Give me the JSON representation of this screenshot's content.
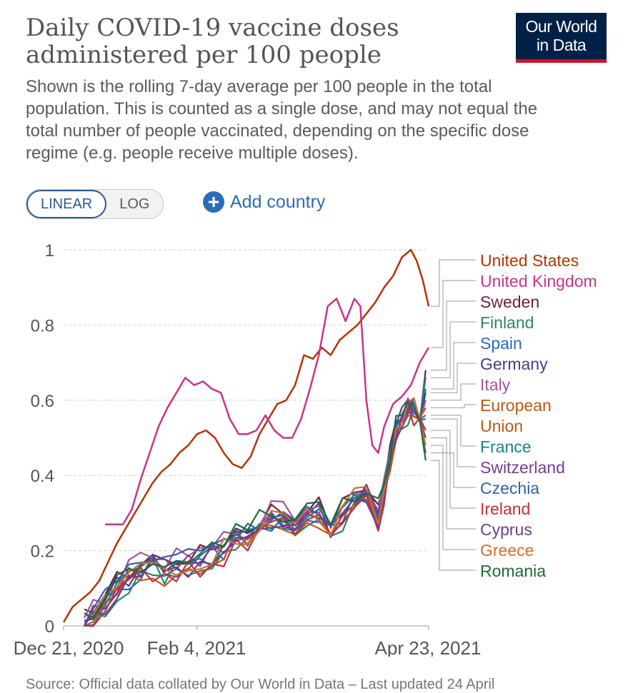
{
  "header": {
    "title": "Daily COVID-19 vaccine doses administered per 100 people",
    "subtitle": "Shown is the rolling 7-day average per 100 people in the total population. This is counted as a single dose, and may not equal the total number of people vaccinated, depending on the specific dose regime (e.g. people receive multiple doses).",
    "logo_line1": "Our World",
    "logo_line2": "in Data"
  },
  "controls": {
    "linear_label": "LINEAR",
    "log_label": "LOG",
    "add_country_label": "Add country"
  },
  "footer": {
    "source_text": "Source: Official data collated by Our World in Data – Last updated 24 April"
  },
  "colors": {
    "brand_navy": "#002147",
    "brand_red": "#c5162e",
    "accent_blue": "#2b6cb8"
  },
  "chart_data": {
    "type": "line",
    "title": "Daily COVID-19 vaccine doses administered per 100 people",
    "xlabel": "",
    "ylabel": "",
    "ylim": [
      0,
      1
    ],
    "x_ticks": [
      "Dec 21, 2020",
      "Feb 4, 2021",
      "Apr 23, 2021"
    ],
    "y_ticks": [
      0,
      0.2,
      0.4,
      0.6,
      0.8,
      1
    ],
    "y_tick_labels": [
      "0",
      "0.2",
      "0.4",
      "0.6",
      "0.8",
      "1"
    ],
    "x_day_range": [
      0,
      123
    ],
    "grid": true,
    "legend_position": "right",
    "series": [
      {
        "name": "United States",
        "color": "#b13507",
        "end": 0.85,
        "points": [
          [
            0,
            0.01
          ],
          [
            3,
            0.05
          ],
          [
            6,
            0.07
          ],
          [
            9,
            0.09
          ],
          [
            12,
            0.12
          ],
          [
            15,
            0.17
          ],
          [
            18,
            0.22
          ],
          [
            21,
            0.26
          ],
          [
            24,
            0.3
          ],
          [
            27,
            0.34
          ],
          [
            30,
            0.38
          ],
          [
            33,
            0.41
          ],
          [
            36,
            0.43
          ],
          [
            39,
            0.46
          ],
          [
            42,
            0.48
          ],
          [
            45,
            0.51
          ],
          [
            48,
            0.52
          ],
          [
            51,
            0.5
          ],
          [
            54,
            0.46
          ],
          [
            57,
            0.43
          ],
          [
            60,
            0.42
          ],
          [
            63,
            0.45
          ],
          [
            66,
            0.51
          ],
          [
            69,
            0.55
          ],
          [
            72,
            0.59
          ],
          [
            75,
            0.6
          ],
          [
            78,
            0.64
          ],
          [
            81,
            0.72
          ],
          [
            84,
            0.71
          ],
          [
            87,
            0.74
          ],
          [
            90,
            0.72
          ],
          [
            93,
            0.76
          ],
          [
            96,
            0.78
          ],
          [
            99,
            0.8
          ],
          [
            102,
            0.83
          ],
          [
            105,
            0.86
          ],
          [
            108,
            0.9
          ],
          [
            111,
            0.93
          ],
          [
            114,
            0.98
          ],
          [
            117,
            1.0
          ],
          [
            119,
            0.97
          ],
          [
            121,
            0.92
          ],
          [
            123,
            0.85
          ]
        ]
      },
      {
        "name": "United Kingdom",
        "color": "#c9338d",
        "end": 0.74,
        "points": [
          [
            14,
            0.27
          ],
          [
            20,
            0.27
          ],
          [
            23,
            0.31
          ],
          [
            26,
            0.39
          ],
          [
            29,
            0.46
          ],
          [
            32,
            0.53
          ],
          [
            35,
            0.58
          ],
          [
            38,
            0.62
          ],
          [
            41,
            0.66
          ],
          [
            44,
            0.64
          ],
          [
            47,
            0.65
          ],
          [
            50,
            0.63
          ],
          [
            53,
            0.62
          ],
          [
            56,
            0.55
          ],
          [
            59,
            0.51
          ],
          [
            62,
            0.51
          ],
          [
            65,
            0.52
          ],
          [
            68,
            0.56
          ],
          [
            71,
            0.52
          ],
          [
            74,
            0.5
          ],
          [
            77,
            0.5
          ],
          [
            80,
            0.55
          ],
          [
            83,
            0.63
          ],
          [
            86,
            0.72
          ],
          [
            89,
            0.85
          ],
          [
            92,
            0.87
          ],
          [
            95,
            0.81
          ],
          [
            98,
            0.87
          ],
          [
            100,
            0.85
          ],
          [
            102,
            0.6
          ],
          [
            104,
            0.48
          ],
          [
            106,
            0.46
          ],
          [
            108,
            0.53
          ],
          [
            111,
            0.59
          ],
          [
            114,
            0.61
          ],
          [
            117,
            0.64
          ],
          [
            120,
            0.7
          ],
          [
            123,
            0.74
          ]
        ]
      }
    ],
    "bundle_series": [
      {
        "name": "Sweden",
        "color": "#6d1e3e",
        "end": 0.68
      },
      {
        "name": "Finland",
        "color": "#2c8465",
        "end": 0.66
      },
      {
        "name": "Spain",
        "color": "#286bbb",
        "end": 0.63
      },
      {
        "name": "Germany",
        "color": "#4c3b8b",
        "end": 0.62
      },
      {
        "name": "Italy",
        "color": "#a2559c",
        "end": 0.6
      },
      {
        "name": "European Union",
        "color": "#be5915",
        "end": 0.58
      },
      {
        "name": "France",
        "color": "#18838c",
        "end": 0.56
      },
      {
        "name": "Switzerland",
        "color": "#7b3b8f",
        "end": 0.55
      },
      {
        "name": "Czechia",
        "color": "#3360a9",
        "end": 0.46
      },
      {
        "name": "Ireland",
        "color": "#c62e3a",
        "end": 0.52
      },
      {
        "name": "Cyprus",
        "color": "#6d3e91",
        "end": 0.5
      },
      {
        "name": "Greece",
        "color": "#d26e2b",
        "end": 0.48
      },
      {
        "name": "Romania",
        "color": "#1d6a3b",
        "end": 0.44
      }
    ],
    "bundle_profile": [
      [
        7,
        0.0
      ],
      [
        10,
        0.04
      ],
      [
        14,
        0.07
      ],
      [
        18,
        0.1
      ],
      [
        22,
        0.13
      ],
      [
        26,
        0.15
      ],
      [
        30,
        0.17
      ],
      [
        34,
        0.15
      ],
      [
        38,
        0.16
      ],
      [
        42,
        0.17
      ],
      [
        46,
        0.17
      ],
      [
        50,
        0.19
      ],
      [
        54,
        0.21
      ],
      [
        58,
        0.24
      ],
      [
        62,
        0.24
      ],
      [
        66,
        0.27
      ],
      [
        70,
        0.29
      ],
      [
        74,
        0.29
      ],
      [
        78,
        0.27
      ],
      [
        82,
        0.31
      ],
      [
        86,
        0.3
      ],
      [
        90,
        0.26
      ],
      [
        94,
        0.3
      ],
      [
        98,
        0.34
      ],
      [
        102,
        0.36
      ],
      [
        106,
        0.3
      ],
      [
        108,
        0.36
      ],
      [
        110,
        0.45
      ],
      [
        112,
        0.52
      ],
      [
        114,
        0.55
      ],
      [
        116,
        0.58
      ],
      [
        118,
        0.58
      ],
      [
        120,
        0.55
      ],
      [
        122,
        0.6
      ]
    ],
    "legend_labels": [
      {
        "key": "us",
        "text": "United States",
        "color": "#b13507"
      },
      {
        "key": "uk",
        "text": "United Kingdom",
        "color": "#c9338d"
      },
      {
        "key": "se",
        "text": "Sweden",
        "color": "#6d1e3e"
      },
      {
        "key": "fi",
        "text": "Finland",
        "color": "#2c8465"
      },
      {
        "key": "es",
        "text": "Spain",
        "color": "#286bbb"
      },
      {
        "key": "de",
        "text": "Germany",
        "color": "#4c3b8b"
      },
      {
        "key": "it",
        "text": "Italy",
        "color": "#a2559c"
      },
      {
        "key": "eu1",
        "text": "European",
        "color": "#be5915"
      },
      {
        "key": "eu2",
        "text": "Union",
        "color": "#be5915"
      },
      {
        "key": "fr",
        "text": "France",
        "color": "#18838c"
      },
      {
        "key": "ch",
        "text": "Switzerland",
        "color": "#7b3b8f"
      },
      {
        "key": "cz",
        "text": "Czechia",
        "color": "#3360a9"
      },
      {
        "key": "ie",
        "text": "Ireland",
        "color": "#c62e3a"
      },
      {
        "key": "cy",
        "text": "Cyprus",
        "color": "#6d3e91"
      },
      {
        "key": "gr",
        "text": "Greece",
        "color": "#d26e2b"
      },
      {
        "key": "ro",
        "text": "Romania",
        "color": "#1d6a3b"
      }
    ]
  }
}
